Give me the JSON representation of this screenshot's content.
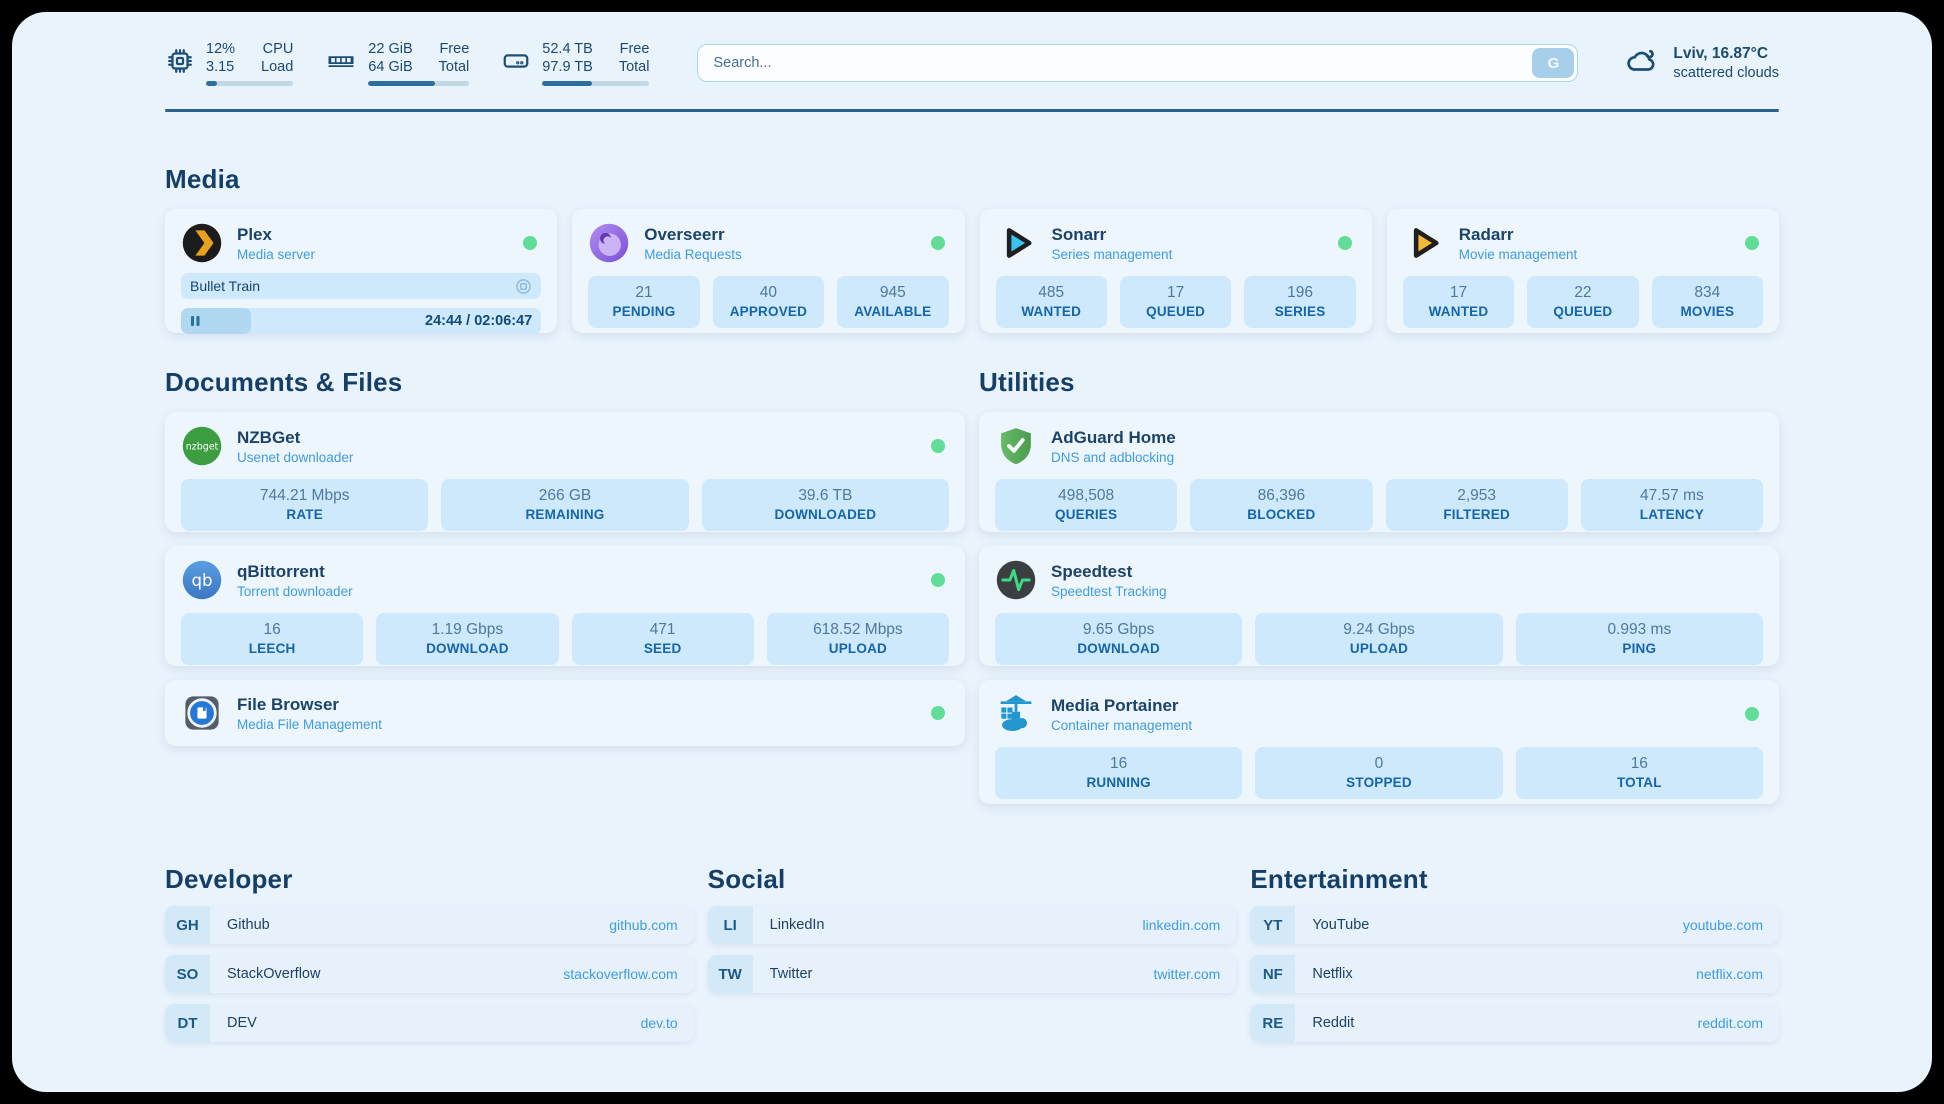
{
  "colors": {
    "page_bg": "#e9f3fc",
    "card_bg": "#eef6fd",
    "stat_box_bg": "#cde9fb",
    "navy_text": "#1b4367",
    "accent_blue": "#3f9be0",
    "status_green": "#61dd97",
    "separator": "#2a5f8e"
  },
  "header": {
    "system_stats": [
      {
        "icon": "cpu",
        "values": [
          "12%",
          "3.15"
        ],
        "labels": [
          "CPU",
          "Load"
        ],
        "progress_pct": 13
      },
      {
        "icon": "memory",
        "values": [
          "22 GiB",
          "64 GiB"
        ],
        "labels": [
          "Free",
          "Total"
        ],
        "progress_pct": 66
      },
      {
        "icon": "storage",
        "values": [
          "52.4 TB",
          "97.9 TB"
        ],
        "labels": [
          "Free",
          "Total"
        ],
        "progress_pct": 46
      }
    ],
    "search": {
      "placeholder": "Search...",
      "button_label": "G"
    },
    "weather": {
      "location_temp": "Lviv, 16.87°C",
      "condition": "scattered clouds"
    }
  },
  "sections": {
    "media": {
      "title": "Media",
      "cards": [
        {
          "name": "Plex",
          "subtitle": "Media server",
          "online": true,
          "now_playing": {
            "title": "Bullet Train",
            "time": "24:44 / 02:06:47",
            "progress_pct": 19.5
          }
        },
        {
          "name": "Overseerr",
          "subtitle": "Media Requests",
          "online": true,
          "stats": [
            {
              "value": "21",
              "label": "PENDING"
            },
            {
              "value": "40",
              "label": "APPROVED"
            },
            {
              "value": "945",
              "label": "AVAILABLE"
            }
          ]
        },
        {
          "name": "Sonarr",
          "subtitle": "Series management",
          "online": true,
          "stats": [
            {
              "value": "485",
              "label": "WANTED"
            },
            {
              "value": "17",
              "label": "QUEUED"
            },
            {
              "value": "196",
              "label": "SERIES"
            }
          ]
        },
        {
          "name": "Radarr",
          "subtitle": "Movie management",
          "online": true,
          "stats": [
            {
              "value": "17",
              "label": "WANTED"
            },
            {
              "value": "22",
              "label": "QUEUED"
            },
            {
              "value": "834",
              "label": "MOVIES"
            }
          ]
        }
      ]
    },
    "documents": {
      "title": "Documents & Files",
      "cards": [
        {
          "name": "NZBGet",
          "subtitle": "Usenet downloader",
          "online": true,
          "stats": [
            {
              "value": "744.21 Mbps",
              "label": "RATE"
            },
            {
              "value": "266 GB",
              "label": "REMAINING"
            },
            {
              "value": "39.6 TB",
              "label": "DOWNLOADED"
            }
          ]
        },
        {
          "name": "qBittorrent",
          "subtitle": "Torrent downloader",
          "online": true,
          "stats": [
            {
              "value": "16",
              "label": "LEECH"
            },
            {
              "value": "1.19 Gbps",
              "label": "DOWNLOAD"
            },
            {
              "value": "471",
              "label": "SEED"
            },
            {
              "value": "618.52 Mbps",
              "label": "UPLOAD"
            }
          ]
        },
        {
          "name": "File Browser",
          "subtitle": "Media File Management",
          "online": true
        }
      ]
    },
    "utilities": {
      "title": "Utilities",
      "cards": [
        {
          "name": "AdGuard Home",
          "subtitle": "DNS and adblocking",
          "stats": [
            {
              "value": "498,508",
              "label": "QUERIES"
            },
            {
              "value": "86,396",
              "label": "BLOCKED"
            },
            {
              "value": "2,953",
              "label": "FILTERED"
            },
            {
              "value": "47.57 ms",
              "label": "LATENCY"
            }
          ]
        },
        {
          "name": "Speedtest",
          "subtitle": "Speedtest Tracking",
          "stats": [
            {
              "value": "9.65 Gbps",
              "label": "DOWNLOAD"
            },
            {
              "value": "9.24 Gbps",
              "label": "UPLOAD"
            },
            {
              "value": "0.993 ms",
              "label": "PING"
            }
          ]
        },
        {
          "name": "Media Portainer",
          "subtitle": "Container management",
          "online": true,
          "stats": [
            {
              "value": "16",
              "label": "RUNNING"
            },
            {
              "value": "0",
              "label": "STOPPED"
            },
            {
              "value": "16",
              "label": "TOTAL"
            }
          ]
        }
      ]
    },
    "developer": {
      "title": "Developer",
      "links": [
        {
          "abbr": "GH",
          "label": "Github",
          "url": "github.com"
        },
        {
          "abbr": "SO",
          "label": "StackOverflow",
          "url": "stackoverflow.com"
        },
        {
          "abbr": "DT",
          "label": "DEV",
          "url": "dev.to"
        }
      ]
    },
    "social": {
      "title": "Social",
      "links": [
        {
          "abbr": "LI",
          "label": "LinkedIn",
          "url": "linkedin.com"
        },
        {
          "abbr": "TW",
          "label": "Twitter",
          "url": "twitter.com"
        }
      ]
    },
    "entertainment": {
      "title": "Entertainment",
      "links": [
        {
          "abbr": "YT",
          "label": "YouTube",
          "url": "youtube.com"
        },
        {
          "abbr": "NF",
          "label": "Netflix",
          "url": "netflix.com"
        },
        {
          "abbr": "RE",
          "label": "Reddit",
          "url": "reddit.com"
        }
      ]
    }
  }
}
